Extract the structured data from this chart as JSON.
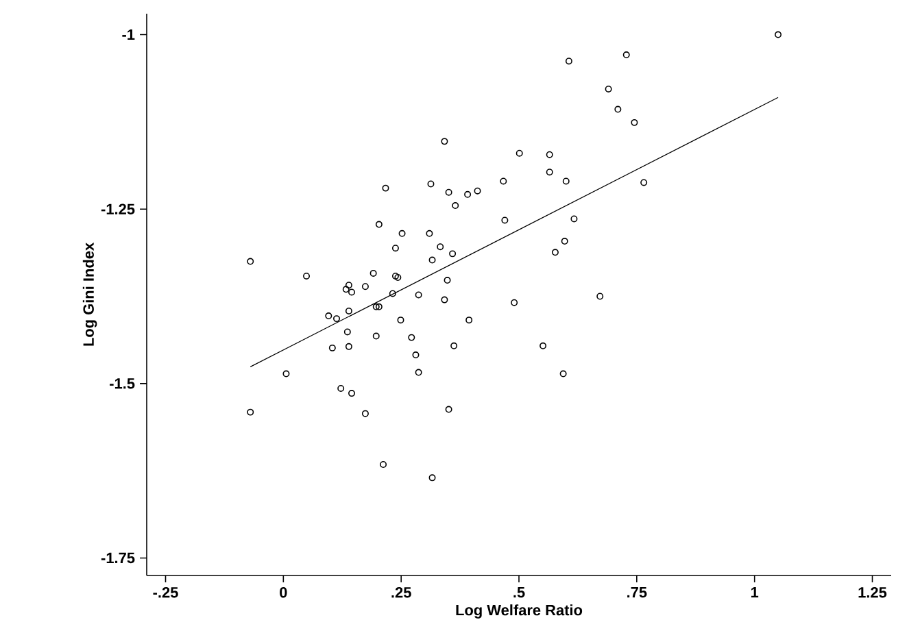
{
  "chart_data": {
    "type": "scatter",
    "xlabel": "Log Welfare Ratio",
    "ylabel": "Log Gini Index",
    "xlim": [
      -0.29,
      1.29
    ],
    "ylim": [
      -1.775,
      -0.97
    ],
    "xticks": [
      {
        "value": -0.25,
        "label": "-.25"
      },
      0,
      {
        "value": 0.25,
        "label": ".25"
      },
      {
        "value": 0.5,
        "label": ".5"
      },
      {
        "value": 0.75,
        "label": ".75"
      },
      1,
      1.25
    ],
    "yticks": [
      -1,
      -1.25,
      -1.5,
      -1.75
    ],
    "grid": false,
    "legend": false,
    "series": [
      {
        "type": "scatter",
        "color": "#000000",
        "marker": "circle",
        "x": [
          0.342,
          0.217,
          0.313,
          0.351,
          0.365,
          0.203,
          0.252,
          0.31,
          0.238,
          0.333,
          0.359,
          0.316,
          -0.07,
          0.049,
          0.191,
          0.238,
          0.243,
          0.133,
          0.145,
          0.139,
          0.174,
          0.232,
          0.287,
          0.348,
          0.342,
          0.096,
          0.113,
          0.139,
          0.197,
          0.203,
          0.249,
          0.136,
          0.197,
          0.272,
          0.104,
          0.139,
          0.281,
          0.362,
          0.006,
          0.287,
          0.122,
          0.145,
          -0.07,
          0.174,
          0.351,
          0.212,
          0.316,
          0.606,
          0.728,
          0.69,
          0.71,
          0.745,
          0.501,
          0.565,
          0.565,
          0.467,
          0.6,
          0.765,
          0.391,
          0.412,
          0.47,
          0.617,
          0.597,
          0.577,
          0.49,
          0.672,
          0.394,
          0.551,
          0.594,
          1.05
        ],
        "values": [
          -1.153,
          -1.22,
          -1.214,
          -1.226,
          -1.245,
          -1.272,
          -1.285,
          -1.285,
          -1.306,
          -1.304,
          -1.314,
          -1.323,
          -1.325,
          -1.346,
          -1.342,
          -1.346,
          -1.348,
          -1.365,
          -1.369,
          -1.359,
          -1.361,
          -1.371,
          -1.373,
          -1.352,
          -1.38,
          -1.403,
          -1.407,
          -1.396,
          -1.39,
          -1.39,
          -1.409,
          -1.426,
          -1.432,
          -1.434,
          -1.449,
          -1.447,
          -1.459,
          -1.446,
          -1.486,
          -1.484,
          -1.507,
          -1.514,
          -1.541,
          -1.543,
          -1.537,
          -1.616,
          -1.635,
          -1.038,
          -1.029,
          -1.078,
          -1.107,
          -1.126,
          -1.17,
          -1.172,
          -1.197,
          -1.21,
          -1.21,
          -1.212,
          -1.229,
          -1.224,
          -1.266,
          -1.264,
          -1.296,
          -1.312,
          -1.384,
          -1.375,
          -1.409,
          -1.446,
          -1.486,
          -1.0
        ]
      },
      {
        "type": "line",
        "color": "#000000",
        "marker": "none",
        "line_style": "solid",
        "x": [
          -0.07,
          1.05
        ],
        "values": [
          -1.476,
          -1.09
        ]
      }
    ]
  }
}
